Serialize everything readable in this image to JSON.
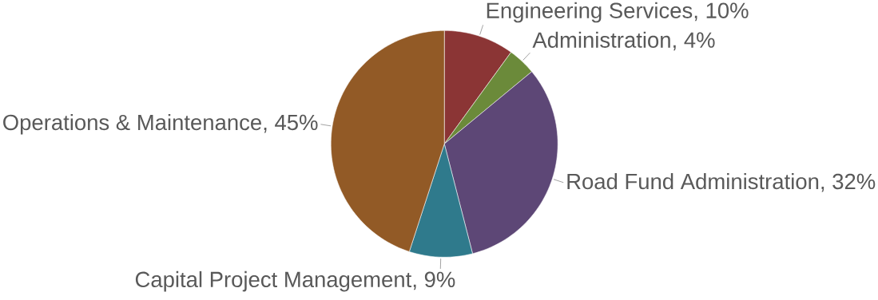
{
  "chart_data": {
    "type": "pie",
    "categories": [
      "Engineering Services",
      "Administration",
      "Road Fund Administration",
      "Capital Project Management",
      "Operations & Maintenance"
    ],
    "values": [
      10,
      4,
      32,
      9,
      45
    ],
    "colors": [
      "#8b3535",
      "#6b8a3a",
      "#5d4776",
      "#2f7a8c",
      "#925a26"
    ],
    "value_labels": [
      ", 10%",
      ", 4%",
      ", 32%",
      ", 9%",
      ", 45%"
    ]
  }
}
